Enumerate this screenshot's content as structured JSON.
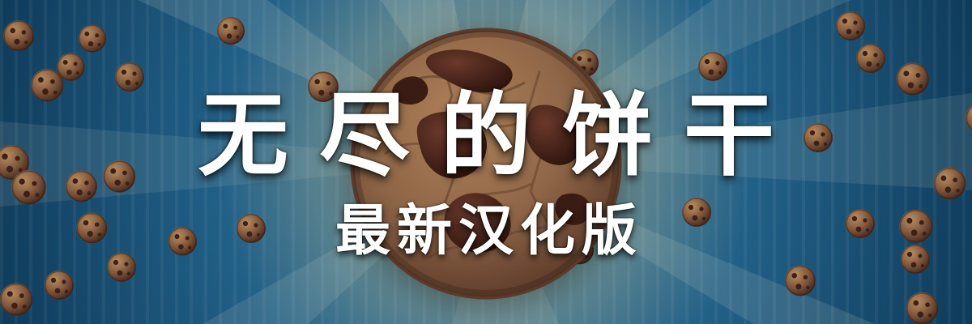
{
  "banner": {
    "title": "无尽的饼干",
    "subtitle": "最新汉化版"
  },
  "colors": {
    "background_blue": "#1c5c85",
    "background_dark": "#0f3b5a",
    "cookie_base": "#8a6045",
    "chocolate": "#3a1a12",
    "title_text": "#ffffff"
  },
  "icons": {
    "main_cookie": "big-cookie-icon",
    "background_cookie": "cookie-icon"
  }
}
